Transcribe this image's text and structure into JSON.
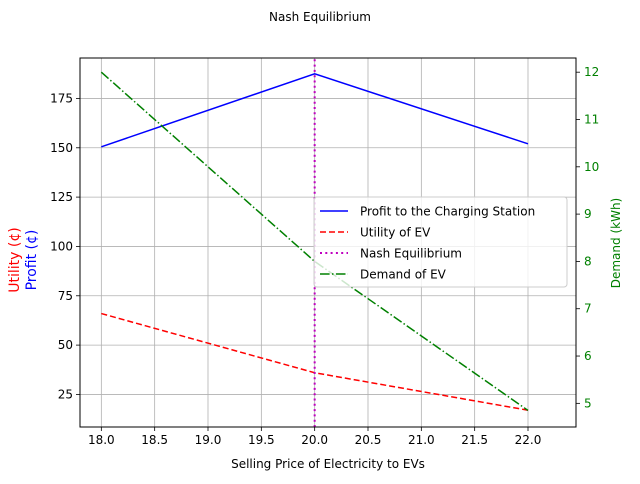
{
  "chart_data": {
    "type": "line",
    "title": "Nash Equilibrium",
    "xlabel": "Selling Price of Electricity to EVs",
    "ylabel_left_top": "Profit (¢)",
    "ylabel_left_bottom": "Utility (¢)",
    "ylabel_right": "Demand (kWh)",
    "xlim": [
      17.8,
      22.45
    ],
    "ylim_left": [
      8.5,
      195.5
    ],
    "ylim_right": [
      4.5,
      12.3
    ],
    "x_ticks": [
      "18.0",
      "18.5",
      "19.0",
      "19.5",
      "20.0",
      "20.5",
      "21.0",
      "21.5",
      "22.0"
    ],
    "x_tick_values": [
      18.0,
      18.5,
      19.0,
      19.5,
      20.0,
      20.5,
      21.0,
      21.5,
      22.0
    ],
    "y_left_ticks": [
      "25",
      "50",
      "75",
      "100",
      "125",
      "150",
      "175"
    ],
    "y_left_tick_values": [
      25,
      50,
      75,
      100,
      125,
      150,
      175
    ],
    "y_right_ticks": [
      "5",
      "6",
      "7",
      "8",
      "9",
      "10",
      "11",
      "12"
    ],
    "y_right_tick_values": [
      5,
      6,
      7,
      8,
      9,
      10,
      11,
      12
    ],
    "grid": true,
    "legend_position": "center-right",
    "series": [
      {
        "name": "Profit to the Charging Station",
        "axis": "left",
        "color": "#0000ff",
        "style": "solid",
        "x": [
          18,
          20,
          22
        ],
        "y": [
          150.5,
          187.5,
          152
        ]
      },
      {
        "name": "Utility of EV",
        "axis": "left",
        "color": "#ff0000",
        "style": "dashed",
        "x": [
          18,
          20,
          22
        ],
        "y": [
          66,
          36,
          17
        ]
      },
      {
        "name": "Nash Equilibrium",
        "axis": "vline",
        "color": "#bf00bf",
        "style": "dotted",
        "x": [
          20,
          20
        ],
        "y": [
          8.5,
          195.5
        ]
      },
      {
        "name": "Demand of EV",
        "axis": "right",
        "color": "#008000",
        "style": "dashdot",
        "x": [
          18,
          20,
          22
        ],
        "y": [
          12,
          8,
          4.85
        ]
      }
    ],
    "colors": {
      "left_top_label": "#0000ff",
      "left_bottom_label": "#ff0000",
      "right_axis": "#008000",
      "grid": "#b0b0b0",
      "axis": "#000000"
    }
  }
}
